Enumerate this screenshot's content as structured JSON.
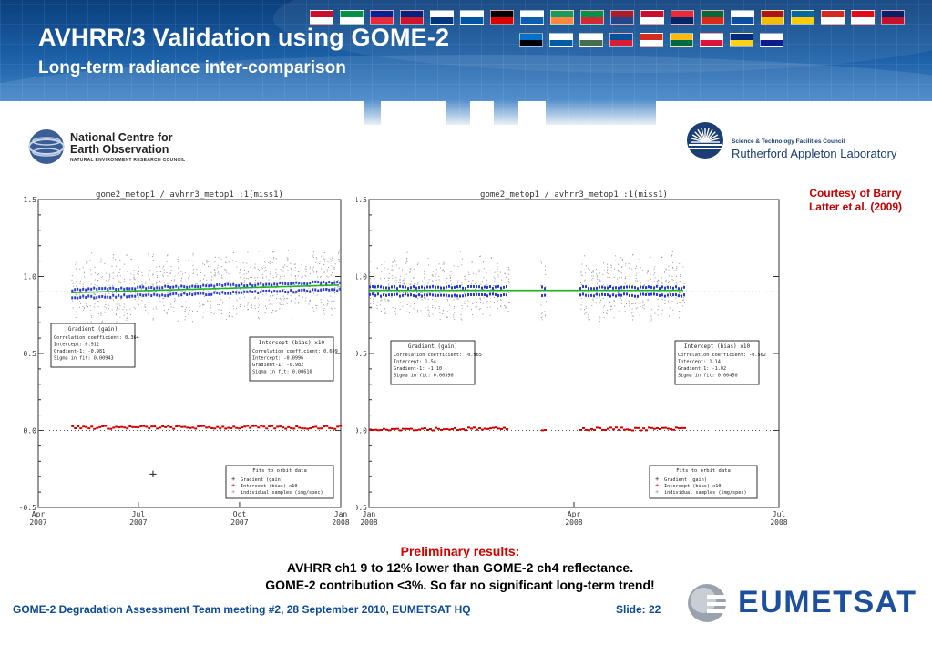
{
  "slide": {
    "title": "AVHRR/3 Validation using GOME-2",
    "subtitle": "Long-term radiance inter-comparison",
    "courtesy": "Courtesy of Barry Latter et al. (2009)",
    "prelim_label": "Preliminary results:",
    "result_line1": "AVHRR ch1 9 to 12% lower than GOME-2 ch4 reflectance.",
    "result_line2": "GOME-2 contribution <3%. So far no significant long-term trend!",
    "footer": "GOME-2 Degradation Assessment Team meeting #2, 28 September 2010, EUMETSAT HQ",
    "slide_number": "Slide: 22",
    "colors": {
      "header_blue": "#1b5fa6",
      "red_text": "#d40000",
      "footer_blue": "#0b4a99"
    }
  },
  "logos": {
    "ncoe": {
      "name": "National Centre for Earth Observation",
      "line1": "National Centre for",
      "line2": "Earth Observation",
      "tagline": "NATURAL ENVIRONMENT RESEARCH COUNCIL"
    },
    "ral": {
      "council": "Science & Technology Facilities Council",
      "lab": "Rutherford Appleton Laboratory"
    },
    "eumetsat": {
      "name": "EUMETSAT"
    }
  },
  "chart_data": [
    {
      "type": "scatter",
      "title": "gome2_metop1 / avhrr3_metop1 :1(miss1)",
      "xlabel": "",
      "ylabel": "",
      "ylim": [
        -0.5,
        1.5
      ],
      "y_ticks": [
        "-0.5",
        "0.0",
        "0.5",
        "1.0",
        "1.5"
      ],
      "x_ticks": [
        {
          "month": "Apr",
          "year": "2007"
        },
        {
          "month": "Jul",
          "year": "2007"
        },
        {
          "month": "Oct",
          "year": "2007"
        },
        {
          "month": "Jan",
          "year": "2008"
        }
      ],
      "xlim": [
        "2007-04-01",
        "2008-01-01"
      ],
      "series": [
        {
          "name": "Gradient (gain)",
          "approx_value": 0.92,
          "start": "2007-05-01",
          "end": "2008-01-01",
          "color": "#2a3bd8"
        },
        {
          "name": "Intercept (bias) x10",
          "approx_value": 0.02,
          "start": "2007-05-01",
          "end": "2008-01-01",
          "color": "#d00000"
        }
      ],
      "gain_stats": {
        "heading": "Gradient (gain)",
        "lines": [
          "Correlation coefficient: 0.364",
          "Intercept: 0.912",
          "Gradient-1: -0.981",
          "Sigma in fit: 0.00943"
        ]
      },
      "bias_stats": {
        "heading": "Intercept (bias) x10",
        "lines": [
          "Correlation coefficient: 0.609",
          "Intercept: -0.0996",
          "Gradient-1: -0.982",
          "Sigma in fit: 0.00610"
        ]
      },
      "legend": {
        "heading": "Fits to orbit data",
        "items": [
          "Gradient (gain)",
          "Intercept (bias) x10",
          "individual samples (img/spec)"
        ],
        "placement": "bottom-right"
      }
    },
    {
      "type": "scatter",
      "title": "gome2_metop1 / avhrr3_metop1 :1(miss1)",
      "xlabel": "",
      "ylabel": "",
      "ylim": [
        -0.5,
        1.5
      ],
      "y_ticks": [
        "-0.5",
        "0.0",
        "0.5",
        "1.0",
        "1.5"
      ],
      "x_ticks": [
        {
          "month": "Jan",
          "year": "2008"
        },
        {
          "month": "Apr",
          "year": "2008"
        },
        {
          "month": "Jul",
          "year": "2008"
        }
      ],
      "xlim": [
        "2008-01-01",
        "2008-07-01"
      ],
      "series": [
        {
          "name": "Gradient (gain)",
          "approx_value": 0.91,
          "start": "2008-01-01",
          "end": "2008-05-20",
          "color": "#2a3bd8"
        },
        {
          "name": "Intercept (bias) x10",
          "approx_value": 0.01,
          "start": "2008-01-01",
          "end": "2008-05-20",
          "color": "#d00000"
        }
      ],
      "gain_stats": {
        "heading": "Gradient (gain)",
        "lines": [
          "Correlation coefficient: -0.965",
          "Intercept: 1.54",
          "Gradient-1: -1.10",
          "Sigma in fit: 0.00390"
        ]
      },
      "bias_stats": {
        "heading": "Intercept (bias) x10",
        "lines": [
          "Correlation coefficient: -0.562",
          "Intercept: 1.14",
          "Gradient-1: -1.02",
          "Sigma in fit: 0.00450"
        ]
      },
      "legend": {
        "heading": "Fits to orbit data",
        "items": [
          "Gradient (gain)",
          "Intercept (bias) x10",
          "individual samples (img/spec)"
        ],
        "placement": "bottom-right"
      }
    }
  ]
}
